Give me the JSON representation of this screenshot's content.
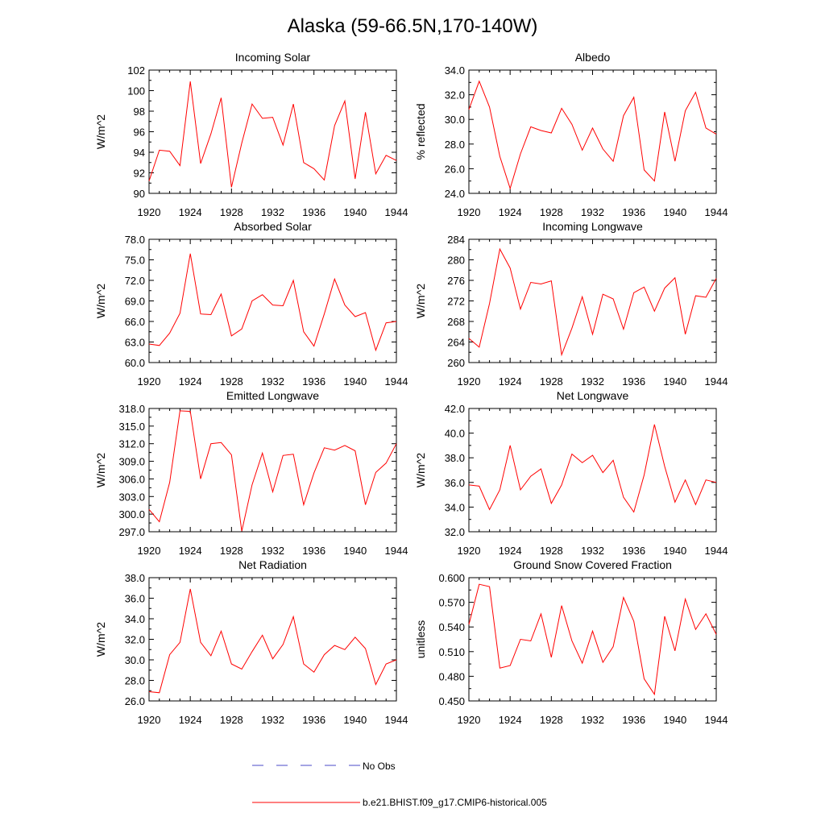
{
  "title": "Alaska (59-66.5N,170-140W)",
  "legend": {
    "entries": [
      {
        "label": "No Obs",
        "color": "#4a4ac8",
        "style": "dashed"
      },
      {
        "label": "b.e21.BHIST.f09_g17.CMIP6-historical.005",
        "color": "#ff0000",
        "style": "solid"
      }
    ]
  },
  "chart_data": [
    {
      "type": "line",
      "title": "Incoming Solar",
      "ylabel": "W/m^2",
      "xlim": [
        1920,
        1944
      ],
      "ylim": [
        90,
        102
      ],
      "xticks": [
        "1920",
        "1924",
        "1928",
        "1932",
        "1936",
        "1940",
        "1944"
      ],
      "yticks": [
        "90",
        "92",
        "94",
        "96",
        "98",
        "100",
        "102"
      ],
      "x": [
        1920,
        1921,
        1922,
        1923,
        1924,
        1925,
        1926,
        1927,
        1928,
        1929,
        1930,
        1931,
        1932,
        1933,
        1934,
        1935,
        1936,
        1937,
        1938,
        1939,
        1940,
        1941,
        1942,
        1943,
        1944
      ],
      "series": [
        {
          "name": "b.e21.BHIST.f09_g17.CMIP6-historical.005",
          "color": "#ff0000",
          "values": [
            91.2,
            94.2,
            94.1,
            92.7,
            100.9,
            92.9,
            95.8,
            99.3,
            90.6,
            94.9,
            98.7,
            97.3,
            97.4,
            94.7,
            98.7,
            93.0,
            92.4,
            91.3,
            96.6,
            99.0,
            91.4,
            97.9,
            91.9,
            93.7,
            93.2
          ]
        }
      ]
    },
    {
      "type": "line",
      "title": "Albedo",
      "ylabel": "% reflected",
      "xlim": [
        1920,
        1944
      ],
      "ylim": [
        24,
        34
      ],
      "xticks": [
        "1920",
        "1924",
        "1928",
        "1932",
        "1936",
        "1940",
        "1944"
      ],
      "yticks": [
        "24.0",
        "26.0",
        "28.0",
        "30.0",
        "32.0",
        "34.0"
      ],
      "x": [
        1920,
        1921,
        1922,
        1923,
        1924,
        1925,
        1926,
        1927,
        1928,
        1929,
        1930,
        1931,
        1932,
        1933,
        1934,
        1935,
        1936,
        1937,
        1938,
        1939,
        1940,
        1941,
        1942,
        1943,
        1944
      ],
      "series": [
        {
          "name": "b.e21.BHIST.f09_g17.CMIP6-historical.005",
          "color": "#ff0000",
          "values": [
            30.8,
            33.1,
            31.0,
            27.0,
            24.4,
            27.2,
            29.4,
            29.1,
            28.9,
            30.9,
            29.6,
            27.5,
            29.3,
            27.6,
            26.6,
            30.3,
            31.8,
            25.9,
            25.0,
            30.6,
            26.6,
            30.7,
            32.2,
            29.3,
            28.8
          ]
        }
      ]
    },
    {
      "type": "line",
      "title": "Absorbed Solar",
      "ylabel": "W/m^2",
      "xlim": [
        1920,
        1944
      ],
      "ylim": [
        60,
        78
      ],
      "xticks": [
        "1920",
        "1924",
        "1928",
        "1932",
        "1936",
        "1940",
        "1944"
      ],
      "yticks": [
        "60.0",
        "63.0",
        "66.0",
        "69.0",
        "72.0",
        "75.0",
        "78.0"
      ],
      "x": [
        1920,
        1921,
        1922,
        1923,
        1924,
        1925,
        1926,
        1927,
        1928,
        1929,
        1930,
        1931,
        1932,
        1933,
        1934,
        1935,
        1936,
        1937,
        1938,
        1939,
        1940,
        1941,
        1942,
        1943,
        1944
      ],
      "series": [
        {
          "name": "b.e21.BHIST.f09_g17.CMIP6-historical.005",
          "color": "#ff0000",
          "values": [
            62.7,
            62.5,
            64.3,
            67.2,
            75.9,
            67.1,
            67.0,
            70.0,
            63.9,
            64.9,
            69.0,
            69.9,
            68.4,
            68.3,
            72.0,
            64.5,
            62.4,
            67.1,
            72.2,
            68.4,
            66.7,
            67.3,
            61.8,
            65.8,
            66.0
          ]
        }
      ]
    },
    {
      "type": "line",
      "title": "Incoming Longwave",
      "ylabel": "W/m^2",
      "xlim": [
        1920,
        1944
      ],
      "ylim": [
        260,
        284
      ],
      "xticks": [
        "1920",
        "1924",
        "1928",
        "1932",
        "1936",
        "1940",
        "1944"
      ],
      "yticks": [
        "260",
        "264",
        "268",
        "272",
        "276",
        "280",
        "284"
      ],
      "x": [
        1920,
        1921,
        1922,
        1923,
        1924,
        1925,
        1926,
        1927,
        1928,
        1929,
        1930,
        1931,
        1932,
        1933,
        1934,
        1935,
        1936,
        1937,
        1938,
        1939,
        1940,
        1941,
        1942,
        1943,
        1944
      ],
      "series": [
        {
          "name": "b.e21.BHIST.f09_g17.CMIP6-historical.005",
          "color": "#ff0000",
          "values": [
            264.7,
            263.0,
            271.5,
            282.1,
            278.4,
            270.4,
            275.6,
            275.3,
            275.9,
            261.5,
            266.7,
            272.8,
            265.5,
            273.3,
            272.4,
            266.5,
            273.6,
            274.7,
            270.0,
            274.5,
            276.5,
            265.5,
            273.0,
            272.7,
            276.4
          ]
        }
      ]
    },
    {
      "type": "line",
      "title": "Emitted Longwave",
      "ylabel": "W/m^2",
      "xlim": [
        1920,
        1944
      ],
      "ylim": [
        297,
        318
      ],
      "xticks": [
        "1920",
        "1924",
        "1928",
        "1932",
        "1936",
        "1940",
        "1944"
      ],
      "yticks": [
        "297.0",
        "300.0",
        "303.0",
        "306.0",
        "309.0",
        "312.0",
        "315.0",
        "318.0"
      ],
      "x": [
        1920,
        1921,
        1922,
        1923,
        1924,
        1925,
        1926,
        1927,
        1928,
        1929,
        1930,
        1931,
        1932,
        1933,
        1934,
        1935,
        1936,
        1937,
        1938,
        1939,
        1940,
        1941,
        1942,
        1943,
        1944
      ],
      "series": [
        {
          "name": "b.e21.BHIST.f09_g17.CMIP6-historical.005",
          "color": "#ff0000",
          "values": [
            300.8,
            298.7,
            305.4,
            317.6,
            317.5,
            306.0,
            312.0,
            312.2,
            310.1,
            297.1,
            305.0,
            310.4,
            303.8,
            310.0,
            310.2,
            301.6,
            307.0,
            311.3,
            310.9,
            311.7,
            310.8,
            301.6,
            307.1,
            308.7,
            312.0
          ]
        }
      ]
    },
    {
      "type": "line",
      "title": "Net Longwave",
      "ylabel": "W/m^2",
      "xlim": [
        1920,
        1944
      ],
      "ylim": [
        32,
        42
      ],
      "xticks": [
        "1920",
        "1924",
        "1928",
        "1932",
        "1936",
        "1940",
        "1944"
      ],
      "yticks": [
        "32.0",
        "34.0",
        "36.0",
        "38.0",
        "40.0",
        "42.0"
      ],
      "x": [
        1920,
        1921,
        1922,
        1923,
        1924,
        1925,
        1926,
        1927,
        1928,
        1929,
        1930,
        1931,
        1932,
        1933,
        1934,
        1935,
        1936,
        1937,
        1938,
        1939,
        1940,
        1941,
        1942,
        1943,
        1944
      ],
      "series": [
        {
          "name": "b.e21.BHIST.f09_g17.CMIP6-historical.005",
          "color": "#ff0000",
          "values": [
            35.8,
            35.7,
            33.8,
            35.4,
            39.0,
            35.4,
            36.5,
            37.1,
            34.3,
            35.8,
            38.3,
            37.6,
            38.2,
            36.8,
            37.8,
            34.8,
            33.6,
            36.6,
            40.7,
            37.3,
            34.4,
            36.2,
            34.2,
            36.2,
            36.0
          ]
        }
      ]
    },
    {
      "type": "line",
      "title": "Net Radiation",
      "ylabel": "W/m^2",
      "xlim": [
        1920,
        1944
      ],
      "ylim": [
        26,
        38
      ],
      "xticks": [
        "1920",
        "1924",
        "1928",
        "1932",
        "1936",
        "1940",
        "1944"
      ],
      "yticks": [
        "26.0",
        "28.0",
        "30.0",
        "32.0",
        "34.0",
        "36.0",
        "38.0"
      ],
      "x": [
        1920,
        1921,
        1922,
        1923,
        1924,
        1925,
        1926,
        1927,
        1928,
        1929,
        1930,
        1931,
        1932,
        1933,
        1934,
        1935,
        1936,
        1937,
        1938,
        1939,
        1940,
        1941,
        1942,
        1943,
        1944
      ],
      "series": [
        {
          "name": "b.e21.BHIST.f09_g17.CMIP6-historical.005",
          "color": "#ff0000",
          "values": [
            26.9,
            26.8,
            30.5,
            31.7,
            36.9,
            31.7,
            30.4,
            32.8,
            29.6,
            29.1,
            30.8,
            32.4,
            30.1,
            31.5,
            34.2,
            29.6,
            28.8,
            30.5,
            31.4,
            31.0,
            32.2,
            31.1,
            27.6,
            29.6,
            30.0
          ]
        }
      ]
    },
    {
      "type": "line",
      "title": "Ground Snow Covered Fraction",
      "ylabel": "unitless",
      "xlim": [
        1920,
        1944
      ],
      "ylim": [
        0.45,
        0.6
      ],
      "xticks": [
        "1920",
        "1924",
        "1928",
        "1932",
        "1936",
        "1940",
        "1944"
      ],
      "yticks": [
        "0.450",
        "0.480",
        "0.510",
        "0.540",
        "0.570",
        "0.600"
      ],
      "x": [
        1920,
        1921,
        1922,
        1923,
        1924,
        1925,
        1926,
        1927,
        1928,
        1929,
        1930,
        1931,
        1932,
        1933,
        1934,
        1935,
        1936,
        1937,
        1938,
        1939,
        1940,
        1941,
        1942,
        1943,
        1944
      ],
      "series": [
        {
          "name": "b.e21.BHIST.f09_g17.CMIP6-historical.005",
          "color": "#ff0000",
          "values": [
            0.543,
            0.592,
            0.589,
            0.49,
            0.493,
            0.525,
            0.523,
            0.556,
            0.503,
            0.566,
            0.523,
            0.496,
            0.535,
            0.497,
            0.516,
            0.576,
            0.547,
            0.477,
            0.458,
            0.553,
            0.511,
            0.574,
            0.537,
            0.556,
            0.531
          ]
        }
      ]
    }
  ]
}
